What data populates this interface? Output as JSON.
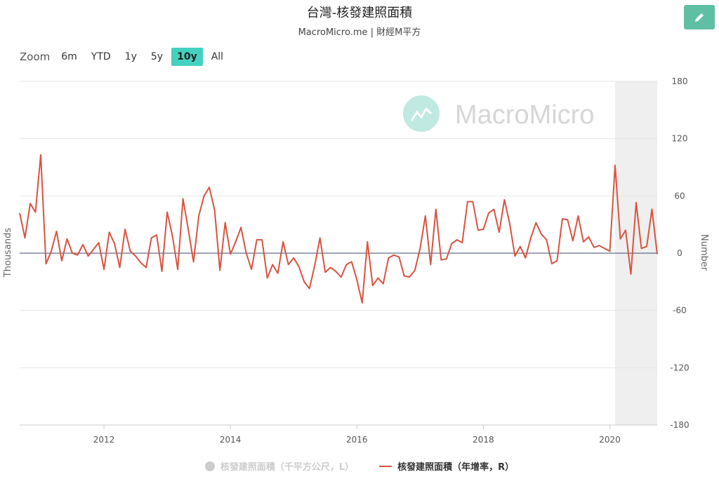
{
  "header": {
    "title": "台灣-核發建照面積",
    "subtitle": "MacroMicro.me | 財經M平方"
  },
  "edit_button": {
    "icon": "pencil-icon"
  },
  "zoom": {
    "label": "Zoom",
    "options": [
      "6m",
      "YTD",
      "1y",
      "5y",
      "10y",
      "All"
    ],
    "active": "10y"
  },
  "watermark": "MacroMicro",
  "colors": {
    "series": "#d9533f",
    "active_zoom": "#45d1c0",
    "edit_button": "#5fbfa3",
    "shaded": "#efefef"
  },
  "chart_data": {
    "type": "line",
    "title": "台灣-核發建照面積",
    "subtitle": "MacroMicro.me | 財經M平方",
    "ylabel_left": "Thousands",
    "ylabel_right": "Number",
    "yticks_right": [
      "180",
      "120",
      "60",
      "0",
      "-60",
      "-120",
      "-180"
    ],
    "ylim": [
      -180,
      180
    ],
    "xlim": [
      "2010-09",
      "2020-10"
    ],
    "xticks": [
      "2012",
      "2014",
      "2016",
      "2018",
      "2020"
    ],
    "shaded_region": [
      "2020-02",
      "2020-10"
    ],
    "legend": [
      {
        "name": "核發建照面積（千平方公尺，L）",
        "visible": false
      },
      {
        "name": "核發建照面積（年增率，R）",
        "visible": true
      }
    ],
    "series": [
      {
        "name": "核發建照面積（年增率，R）",
        "axis": "right",
        "start": "2010-09",
        "frequency": "monthly",
        "values": [
          42,
          16,
          52,
          43,
          103,
          -11,
          2,
          23,
          -8,
          15,
          0,
          -2,
          9,
          -3,
          4,
          11,
          -17,
          22,
          10,
          -15,
          25,
          2,
          -3,
          -10,
          -15,
          16,
          19,
          -19,
          43,
          18,
          -17,
          57,
          25,
          -9,
          39,
          60,
          69,
          45,
          -18,
          32,
          -1,
          12,
          27,
          0,
          -17,
          14,
          14,
          -26,
          -12,
          -21,
          12,
          -12,
          -5,
          -14,
          -30,
          -37,
          -13,
          16,
          -20,
          -15,
          -19,
          -25,
          -12,
          -9,
          -28,
          -52,
          12,
          -34,
          -26,
          -32,
          -5,
          -2,
          -4,
          -24,
          -25,
          -18,
          5,
          39,
          -12,
          46,
          -7,
          -6,
          10,
          14,
          11,
          54,
          54,
          24,
          25,
          42,
          46,
          22,
          56,
          31,
          -3,
          7,
          -5,
          16,
          32,
          20,
          14,
          -11,
          -8,
          36,
          35,
          13,
          39,
          12,
          17,
          6,
          8,
          5,
          2,
          92,
          15,
          24,
          -22,
          53,
          5,
          7,
          46,
          -1
        ]
      }
    ]
  }
}
